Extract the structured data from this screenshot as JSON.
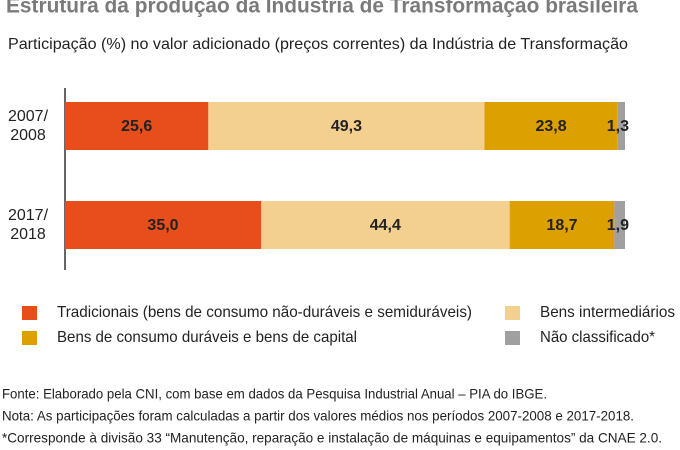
{
  "chart_data": {
    "type": "stacked-barh",
    "title": "Estrutura da produção da Indústria de Transformação brasileira",
    "subtitle": "Participação (%) no valor adicionado (preços correntes) da Indústria de Transformação",
    "categories": [
      "2007/\n2008",
      "2017/\n2018"
    ],
    "xlim": [
      0,
      100
    ],
    "series": [
      {
        "name": "Tradicionais (bens de consumo não-duráveis e semiduráveis)",
        "color": "#e84e1b",
        "values": [
          25.6,
          35.0
        ],
        "value_labels": [
          "25,6",
          "35,0"
        ]
      },
      {
        "name": "Bens intermediários",
        "color": "#f3d08f",
        "values": [
          49.3,
          44.4
        ],
        "value_labels": [
          "49,3",
          "44,4"
        ]
      },
      {
        "name": "Bens de consumo duráveis e bens de capital",
        "color": "#dca000",
        "values": [
          23.8,
          18.7
        ],
        "value_labels": [
          "23,8",
          "18,7"
        ]
      },
      {
        "name": "Não classificado*",
        "color": "#a0a0a0",
        "values": [
          1.3,
          1.9
        ],
        "value_labels": [
          "1,3",
          "1,9"
        ]
      }
    ],
    "notes": [
      "Fonte: Elaborado pela CNI, com base em dados da Pesquisa Industrial Anual – PIA do IBGE.",
      "Nota: As participações foram calculadas a partir dos valores médios nos períodos 2007-2008 e 2017-2018.",
      "*Corresponde à divisão 33 “Manutenção, reparação e instalação de máquinas e equipamentos” da CNAE 2.0."
    ]
  }
}
